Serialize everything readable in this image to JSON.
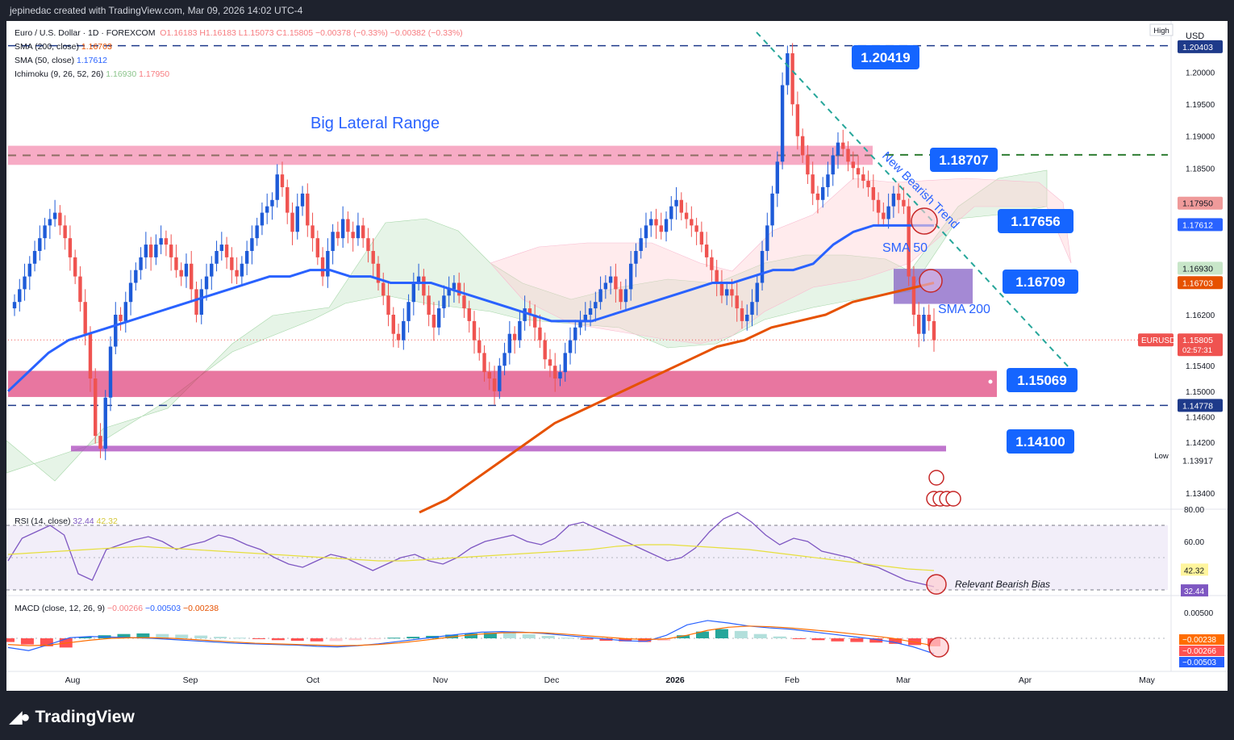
{
  "header": {
    "text": "jepinedac created with TradingView.com, Mar 09, 2026 14:02 UTC-4"
  },
  "footer": {
    "brand": "TradingView",
    "logo_icon": "tradingview-logo-icon"
  },
  "legend": {
    "symbol": "Euro / U.S. Dollar · 1D · FOREXCOM",
    "ohlc": "O1.16183  H1.16183  L1.15073  C1.15805  −0.00378 (−0.33%)  −0.00382 (−0.33%)",
    "sma200_label": "SMA (200, close)",
    "sma200_value": "1.16703",
    "sma50_label": "SMA (50, close)",
    "sma50_value": "1.17612",
    "ichimoku_label": "Ichimoku (9, 26, 52, 26)",
    "ichimoku_a": "1.16930",
    "ichimoku_b": "1.17950",
    "rsi_label": "RSI (14, close)",
    "rsi_value": "32.44",
    "rsi_ma": "42.32",
    "macd_label": "MACD (close, 12, 26, 9)",
    "macd_hist": "−0.00266",
    "macd_line": "−0.00503",
    "macd_signal": "−0.00238"
  },
  "chart_data": {
    "type": "candlestick",
    "symbol": "EURUSD",
    "currency": "USD",
    "y_ticks": [
      "1.20000",
      "1.19500",
      "1.19000",
      "1.18500",
      "1.17950",
      "1.17612",
      "1.16930",
      "1.16703",
      "1.16200",
      "1.15805",
      "1.15400",
      "1.15000",
      "1.14778",
      "1.14600",
      "1.14200",
      "1.13917",
      "1.13400"
    ],
    "x_ticks": [
      "Aug",
      "Sep",
      "Oct",
      "Nov",
      "Dec",
      "2026",
      "Feb",
      "Mar",
      "Apr",
      "May"
    ],
    "countdown": "02:57:31",
    "high_tag": "High",
    "high_value": "1.20403",
    "low_tag": "Low",
    "low_value": "1.13917",
    "price_tag": "EURUSD",
    "ylim": [
      1.1315,
      1.2068
    ],
    "price_levels": [
      {
        "label": "1.20419",
        "value": 1.20419
      },
      {
        "label": "1.18707",
        "value": 1.18707
      },
      {
        "label": "1.17656",
        "value": 1.17656
      },
      {
        "label": "1.16709",
        "value": 1.16709
      },
      {
        "label": "1.15069",
        "value": 1.15069
      },
      {
        "label": "1.14100",
        "value": 1.141
      },
      {
        "label": "1.14778",
        "value": 1.14778
      }
    ],
    "annotations": {
      "range_title": "Big Lateral Range",
      "trend_label": "New Bearish Trend",
      "sma50_note": "SMA 50",
      "sma200_note": "SMA 200",
      "rsi_note": "Relevant Bearish Bias"
    },
    "closes": [
      1.164,
      1.166,
      1.168,
      1.17,
      1.172,
      1.174,
      1.176,
      1.177,
      1.178,
      1.176,
      1.174,
      1.171,
      1.168,
      1.164,
      1.159,
      1.152,
      1.143,
      1.141,
      1.149,
      1.157,
      1.162,
      1.161,
      1.164,
      1.167,
      1.169,
      1.171,
      1.173,
      1.171,
      1.173,
      1.174,
      1.173,
      1.171,
      1.169,
      1.168,
      1.17,
      1.166,
      1.162,
      1.166,
      1.168,
      1.17,
      1.172,
      1.173,
      1.171,
      1.169,
      1.168,
      1.17,
      1.172,
      1.174,
      1.176,
      1.178,
      1.179,
      1.18,
      1.184,
      1.182,
      1.178,
      1.175,
      1.179,
      1.181,
      1.176,
      1.174,
      1.171,
      1.168,
      1.172,
      1.175,
      1.174,
      1.177,
      1.175,
      1.174,
      1.176,
      1.174,
      1.172,
      1.17,
      1.167,
      1.165,
      1.162,
      1.159,
      1.158,
      1.161,
      1.164,
      1.167,
      1.168,
      1.165,
      1.162,
      1.16,
      1.163,
      1.165,
      1.166,
      1.167,
      1.165,
      1.163,
      1.161,
      1.158,
      1.156,
      1.153,
      1.152,
      1.15,
      1.154,
      1.156,
      1.159,
      1.158,
      1.161,
      1.163,
      1.162,
      1.16,
      1.158,
      1.155,
      1.154,
      1.152,
      1.153,
      1.156,
      1.158,
      1.16,
      1.161,
      1.162,
      1.163,
      1.164,
      1.166,
      1.167,
      1.168,
      1.166,
      1.164,
      1.166,
      1.17,
      1.172,
      1.174,
      1.176,
      1.177,
      1.176,
      1.175,
      1.177,
      1.179,
      1.18,
      1.178,
      1.177,
      1.176,
      1.175,
      1.173,
      1.171,
      1.169,
      1.167,
      1.165,
      1.166,
      1.165,
      1.163,
      1.161,
      1.162,
      1.164,
      1.167,
      1.172,
      1.176,
      1.181,
      1.186,
      1.198,
      1.203,
      1.195,
      1.19,
      1.187,
      1.184,
      1.181,
      1.18,
      1.182,
      1.184,
      1.187,
      1.189,
      1.188,
      1.186,
      1.185,
      1.184,
      1.183,
      1.182,
      1.18,
      1.178,
      1.177,
      1.179,
      1.181,
      1.18,
      1.179,
      1.168,
      1.162,
      1.159,
      1.162,
      1.161,
      1.158
    ],
    "sma50": [
      1.15,
      1.153,
      1.156,
      1.158,
      1.159,
      1.16,
      1.161,
      1.162,
      1.163,
      1.164,
      1.165,
      1.166,
      1.167,
      1.168,
      1.168,
      1.169,
      1.169,
      1.168,
      1.168,
      1.167,
      1.167,
      1.167,
      1.166,
      1.165,
      1.164,
      1.163,
      1.162,
      1.161,
      1.161,
      1.161,
      1.162,
      1.163,
      1.164,
      1.165,
      1.166,
      1.167,
      1.167,
      1.168,
      1.169,
      1.169,
      1.17,
      1.173,
      1.175,
      1.176,
      1.176,
      1.176,
      1.176
    ],
    "sma200": [
      1.131,
      1.133,
      1.136,
      1.139,
      1.142,
      1.145,
      1.147,
      1.149,
      1.151,
      1.153,
      1.155,
      1.157,
      1.158,
      1.16,
      1.161,
      1.162,
      1.164,
      1.165,
      1.166,
      1.167
    ],
    "rsi": [
      48,
      62,
      66,
      70,
      64,
      40,
      36,
      55,
      58,
      61,
      63,
      60,
      55,
      58,
      60,
      64,
      62,
      58,
      55,
      50,
      46,
      44,
      48,
      52,
      50,
      46,
      42,
      46,
      50,
      52,
      48,
      46,
      50,
      56,
      60,
      62,
      64,
      60,
      58,
      62,
      70,
      72,
      68,
      64,
      60,
      56,
      52,
      48,
      50,
      56,
      66,
      74,
      78,
      72,
      64,
      58,
      62,
      60,
      54,
      52,
      50,
      46,
      44,
      40,
      36,
      34,
      32
    ],
    "rsi_ma": [
      52,
      53,
      54,
      55,
      56,
      57,
      56,
      55,
      54,
      53,
      52,
      51,
      50,
      49,
      48,
      48,
      49,
      50,
      51,
      52,
      53,
      54,
      55,
      57,
      58,
      58,
      57,
      56,
      55,
      53,
      51,
      49,
      47,
      45,
      43,
      42
    ],
    "macd_hist": [
      -0.0012,
      -0.002,
      -0.0026,
      -0.003,
      0.0004,
      0.001,
      0.0014,
      0.0016,
      0.0014,
      0.0012,
      0.0009,
      0.0005,
      0.0002,
      -0.0002,
      -0.0006,
      -0.0008,
      -0.001,
      -0.0009,
      -0.0006,
      -0.0003,
      0.0002,
      0.0005,
      0.0008,
      0.0012,
      0.0016,
      0.0018,
      0.0017,
      0.0013,
      0.0008,
      0.0002,
      -0.0004,
      -0.0008,
      -0.001,
      -0.0012,
      -0.0008,
      0.001,
      0.0022,
      0.003,
      0.0024,
      0.0014,
      0.0006,
      -0.0002,
      -0.0006,
      -0.001,
      -0.0012,
      -0.0014,
      -0.0018,
      -0.0022,
      -0.0026
    ],
    "macd_line": [
      -0.003,
      -0.004,
      -0.002,
      0.0002,
      0.0006,
      0.0004,
      0.0002,
      0.0,
      -0.0004,
      -0.0008,
      -0.0012,
      -0.0016,
      -0.0018,
      -0.002,
      -0.0022,
      -0.0026,
      -0.0028,
      -0.0024,
      -0.0018,
      -0.001,
      -0.0002,
      0.0006,
      0.0014,
      0.002,
      0.0022,
      0.002,
      0.0016,
      0.001,
      0.0004,
      -0.0002,
      -0.0008,
      -0.001,
      0.001,
      0.0044,
      0.0058,
      0.005,
      0.004,
      0.0034,
      0.003,
      0.0022,
      0.0014,
      0.0006,
      -0.0002,
      -0.0012,
      -0.0028,
      -0.005
    ],
    "macd_signal": [
      -0.002,
      -0.0024,
      -0.0022,
      -0.0014,
      -0.0006,
      0.0,
      0.0002,
      0.0002,
      0.0,
      -0.0004,
      -0.0008,
      -0.0012,
      -0.0016,
      -0.0018,
      -0.002,
      -0.0022,
      -0.0024,
      -0.0023,
      -0.002,
      -0.0015,
      -0.0008,
      0.0,
      0.0008,
      0.0014,
      0.0018,
      0.0019,
      0.0018,
      0.0014,
      0.0009,
      0.0004,
      -0.0001,
      -0.0004,
      -0.0002,
      0.001,
      0.0026,
      0.0036,
      0.004,
      0.0038,
      0.0034,
      0.0028,
      0.0022,
      0.0015,
      0.0008,
      0.0,
      -0.0012,
      -0.0024
    ],
    "rsi_ticks": [
      "80.00",
      "60.00",
      "42.32",
      "32.44"
    ],
    "macd_ticks": [
      "0.00500",
      "−0.00238",
      "−0.00266",
      "−0.00503"
    ]
  }
}
